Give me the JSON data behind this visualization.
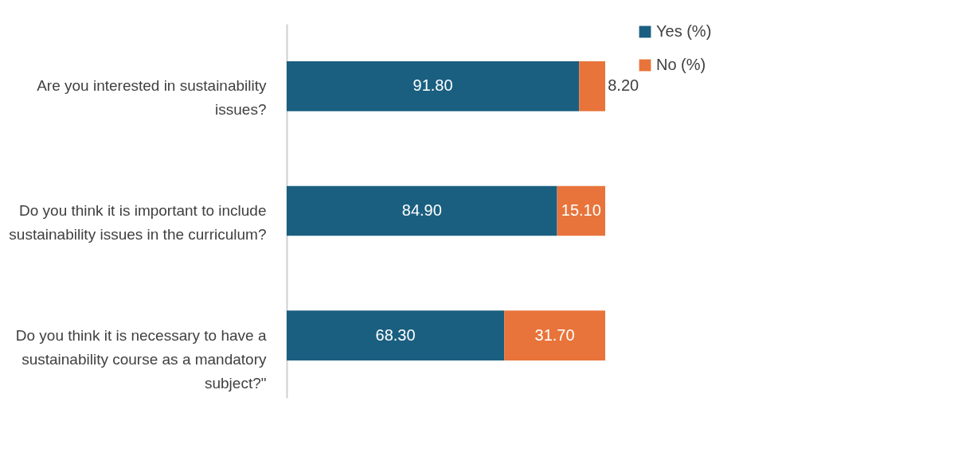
{
  "chart_data": {
    "type": "bar",
    "orientation": "horizontal",
    "stacked": true,
    "categories": [
      "Are you interested in sustainability issues?",
      "Do you think it is important to include sustainability issues in the curriculum?",
      "Do you think it is necessary to have a sustainability course as a mandatory subject?\""
    ],
    "series": [
      {
        "name": "Yes (%)",
        "color": "#1a5f80",
        "values": [
          91.8,
          84.9,
          68.3
        ],
        "value_labels": [
          "91.80",
          "84.90",
          "68.30"
        ]
      },
      {
        "name": "No (%)",
        "color": "#e8743b",
        "values": [
          8.2,
          15.1,
          31.7
        ],
        "value_labels": [
          "8.20",
          "15.10",
          "31.70"
        ]
      }
    ],
    "xlim": [
      0,
      100
    ],
    "tick_labels": "y",
    "grid": false,
    "legend": "right"
  }
}
